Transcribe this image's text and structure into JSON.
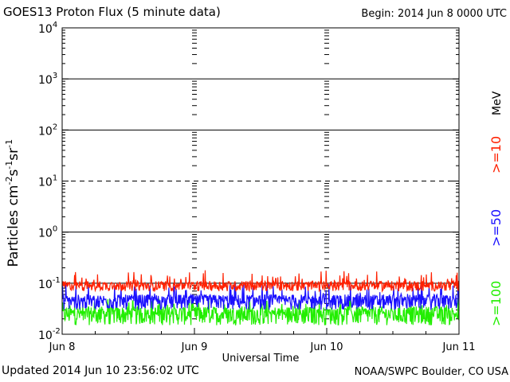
{
  "header": {
    "title": "GOES13 Proton Flux (5 minute data)",
    "begin": "Begin: 2014 Jun 8 0000 UTC"
  },
  "footer": {
    "updated": "Updated 2014 Jun 10 23:56:02 UTC",
    "credit": "NOAA/SWPC Boulder, CO USA"
  },
  "chart_data": {
    "type": "line",
    "title": "GOES13 Proton Flux (5 minute data)",
    "xlabel": "Universal Time",
    "ylabel": "Particles cm-2s-1sr-1",
    "yscale": "log",
    "ylim_exponents": [
      -2,
      4
    ],
    "y_ticks": [
      {
        "base": "10",
        "exp": "-2"
      },
      {
        "base": "10",
        "exp": "-1"
      },
      {
        "base": "10",
        "exp": "0"
      },
      {
        "base": "10",
        "exp": "1"
      },
      {
        "base": "10",
        "exp": "2"
      },
      {
        "base": "10",
        "exp": "3"
      },
      {
        "base": "10",
        "exp": "4"
      }
    ],
    "x_ticks": [
      "Jun 8",
      "Jun 9",
      "Jun 10",
      "Jun 11"
    ],
    "threshold": {
      "value": 10,
      "style": "dashed"
    },
    "unit_label": "MeV",
    "series": [
      {
        "name": ">=10",
        "color": "#ff2000",
        "baseline": 0.09,
        "spread_low": 0.07,
        "spread_high": 0.18
      },
      {
        "name": ">=50",
        "color": "#1a10ff",
        "baseline": 0.045,
        "spread_low": 0.03,
        "spread_high": 0.1
      },
      {
        "name": ">=100",
        "color": "#22ee00",
        "baseline": 0.025,
        "spread_low": 0.015,
        "spread_high": 0.05
      }
    ],
    "grid": true,
    "legend": "right, vertical"
  }
}
